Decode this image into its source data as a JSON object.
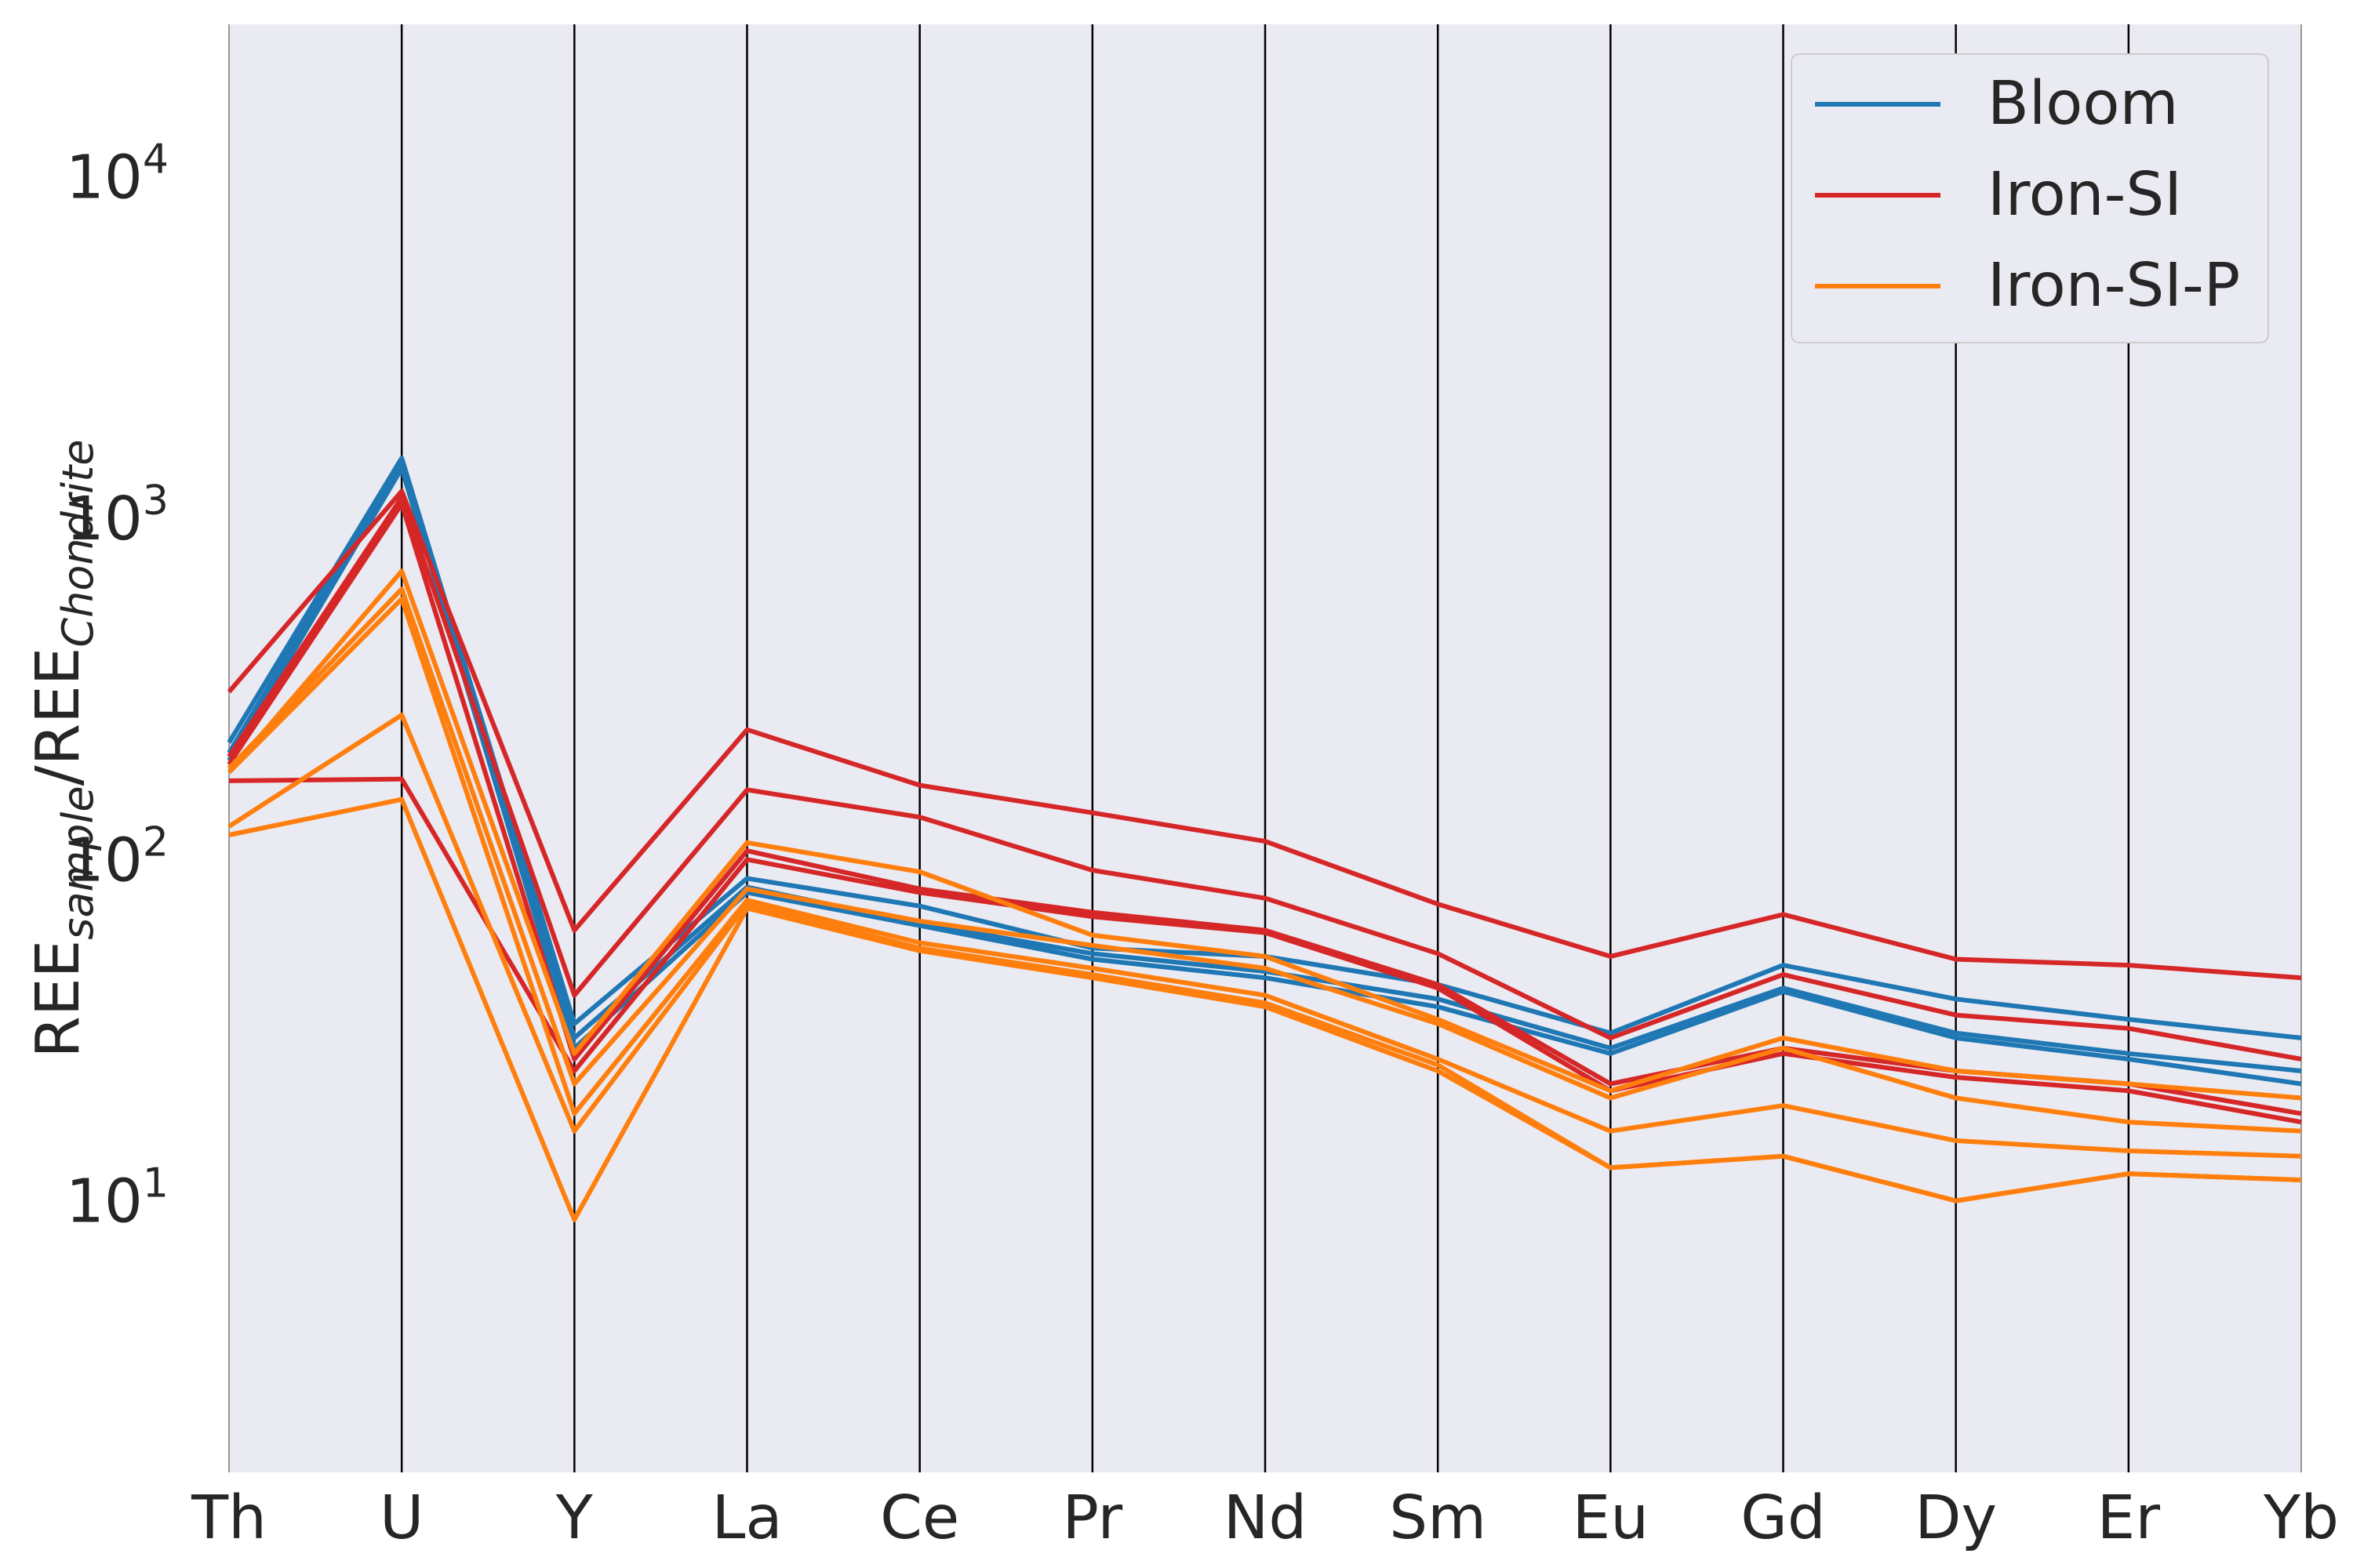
{
  "chart_data": {
    "type": "line",
    "chart_style": "parallel-coordinates",
    "xlabel": "",
    "ylabel": {
      "main1": "REE",
      "sub1": "sample",
      "slash": "/",
      "main2": "REE",
      "sub2": "Chondrite"
    },
    "yscale": "log",
    "ylim": [
      1.6,
      28000
    ],
    "yticks": [
      {
        "value": 10,
        "base": "10",
        "exp": "1"
      },
      {
        "value": 100,
        "base": "10",
        "exp": "2"
      },
      {
        "value": 1000,
        "base": "10",
        "exp": "3"
      },
      {
        "value": 10000,
        "base": "10",
        "exp": "4"
      }
    ],
    "categories": [
      "Th",
      "U",
      "Y",
      "La",
      "Ce",
      "Pr",
      "Nd",
      "Sm",
      "Eu",
      "Gd",
      "Dy",
      "Er",
      "Yb"
    ],
    "grid": "vertical lines at each category",
    "background": "#eaeaf2",
    "legend": {
      "placement": "top-right",
      "entries": [
        {
          "label": "Bloom",
          "color": "#1f77b4"
        },
        {
          "label": "Iron-SI",
          "color": "#d62728"
        },
        {
          "label": "Iron-SI-P",
          "color": "#ff7f0e"
        }
      ]
    },
    "series": [
      {
        "group": "Bloom",
        "color": "#1f77b4",
        "values": [
          220,
          1500,
          33,
          88,
          73,
          55,
          52,
          43,
          31,
          49,
          39,
          34,
          30
        ]
      },
      {
        "group": "Bloom",
        "color": "#1f77b4",
        "values": [
          205,
          1450,
          30,
          83,
          65,
          53,
          47,
          39,
          28,
          42,
          31,
          27,
          24
        ]
      },
      {
        "group": "Bloom",
        "color": "#1f77b4",
        "values": [
          195,
          1400,
          28,
          80,
          64,
          51,
          45,
          37,
          27,
          41,
          30,
          26,
          22
        ]
      },
      {
        "group": "Iron-SI",
        "color": "#d62728",
        "values": [
          310,
          1200,
          62,
          240,
          165,
          137,
          113,
          74,
          52,
          69,
          51,
          49,
          45
        ]
      },
      {
        "group": "Iron-SI",
        "color": "#d62728",
        "values": [
          200,
          1150,
          40,
          160,
          133,
          93,
          77,
          53,
          30,
          46,
          35,
          32,
          26
        ]
      },
      {
        "group": "Iron-SI",
        "color": "#d62728",
        "values": [
          190,
          1100,
          26,
          106,
          82,
          70,
          62,
          43,
          22,
          28,
          24,
          22,
          18
        ]
      },
      {
        "group": "Iron-SI",
        "color": "#d62728",
        "values": [
          170,
          172,
          24,
          100,
          80,
          68,
          61,
          42,
          21,
          27,
          23,
          21,
          17
        ]
      },
      {
        "group": "Iron-SI-P",
        "color": "#ff7f0e",
        "values": [
          180,
          700,
          27,
          112,
          92,
          60,
          52,
          34,
          21,
          30,
          24,
          22,
          20
        ]
      },
      {
        "group": "Iron-SI-P",
        "color": "#ff7f0e",
        "values": [
          185,
          620,
          22,
          82,
          66,
          56,
          48,
          33,
          20,
          28,
          20,
          17,
          16
        ]
      },
      {
        "group": "Iron-SI-P",
        "color": "#ff7f0e",
        "values": [
          180,
          580,
          18,
          76,
          57,
          48,
          40,
          26,
          16,
          19,
          15,
          14,
          13.5
        ]
      },
      {
        "group": "Iron-SI-P",
        "color": "#ff7f0e",
        "values": [
          125,
          265,
          16,
          74,
          55,
          46,
          38,
          25,
          12.5,
          13.5,
          10,
          12,
          11.5
        ]
      },
      {
        "group": "Iron-SI-P",
        "color": "#ff7f0e",
        "values": [
          118,
          150,
          8.8,
          72,
          54,
          45,
          37,
          24,
          12.5,
          13.5,
          10,
          12,
          11.5
        ]
      }
    ]
  }
}
